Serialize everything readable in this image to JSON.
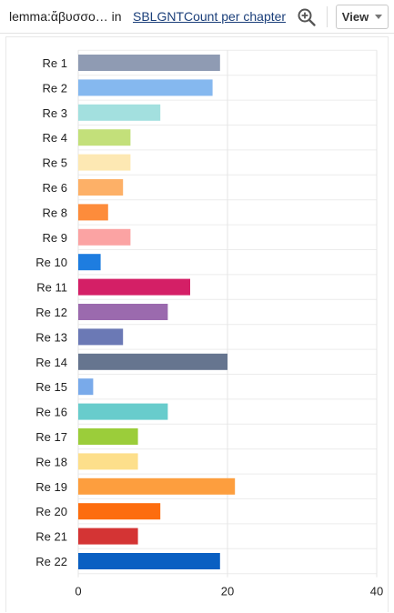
{
  "header": {
    "query_text": "lemma:ἄβυσσο… in",
    "corpus_link": "SBLGNT",
    "mode_link": "Count per chapter",
    "zoom_icon": "zoom-in-icon",
    "view_label": "View",
    "view_caret_icon": "caret-down-icon"
  },
  "chart_data": {
    "type": "bar",
    "orientation": "horizontal",
    "categories": [
      "Re 1",
      "Re 2",
      "Re 3",
      "Re 4",
      "Re 5",
      "Re 6",
      "Re 8",
      "Re 9",
      "Re 10",
      "Re 11",
      "Re 12",
      "Re 13",
      "Re 14",
      "Re 15",
      "Re 16",
      "Re 17",
      "Re 18",
      "Re 19",
      "Re 20",
      "Re 21",
      "Re 22"
    ],
    "values": [
      19,
      18,
      11,
      7,
      7,
      6,
      4,
      7,
      3,
      15,
      12,
      6,
      20,
      2,
      12,
      8,
      8,
      21,
      11,
      8,
      19
    ],
    "colors": [
      "#8f9bb3",
      "#85b8ef",
      "#a3e0df",
      "#c3e07a",
      "#fde8b3",
      "#fdb067",
      "#fd8c3b",
      "#fba3a3",
      "#1e7de0",
      "#d41f66",
      "#9b6aae",
      "#6b79b5",
      "#66758f",
      "#79aaea",
      "#68cccc",
      "#9bcd3a",
      "#fddf8b",
      "#fd9e3e",
      "#fd6d0f",
      "#d43434",
      "#0a5fc2"
    ],
    "ticks": [
      0,
      20,
      40
    ],
    "xlim": [
      0,
      40
    ],
    "title": "",
    "xlabel": "",
    "ylabel": "",
    "grid": true,
    "legend": "none"
  }
}
